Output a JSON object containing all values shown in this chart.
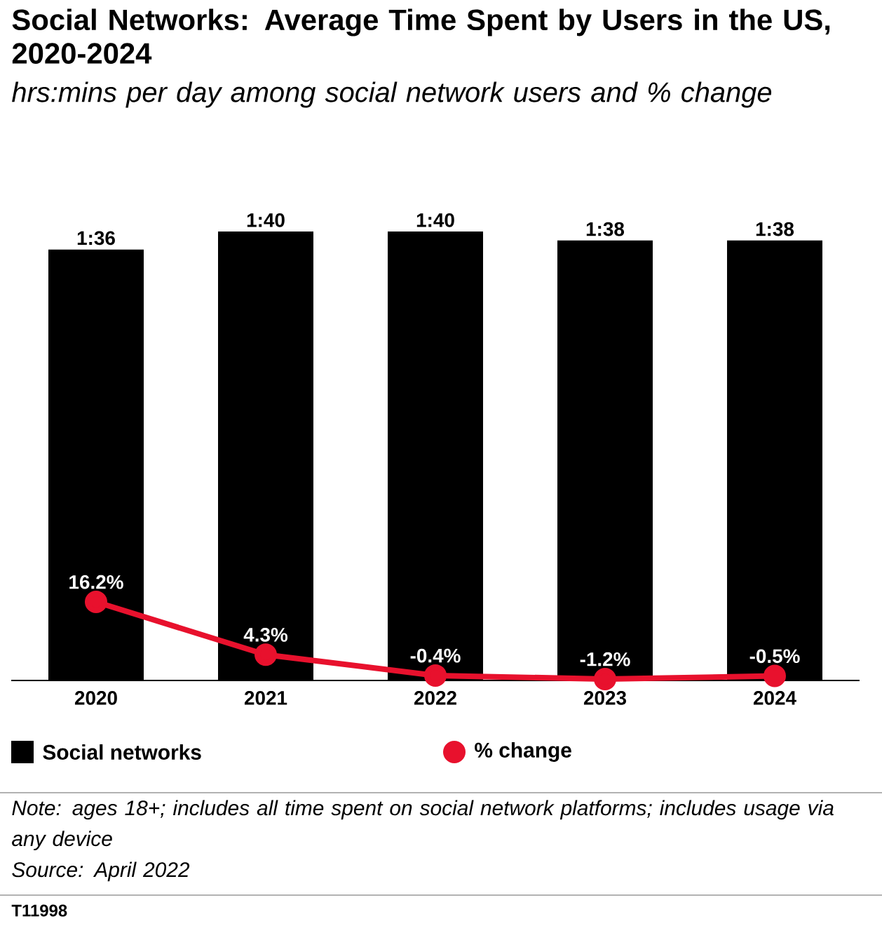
{
  "chart_data": {
    "type": "bar",
    "title": "Social Networks: Average Time Spent by Users in the US, 2020-2024",
    "subtitle": "hrs:mins per day among social network users and % change",
    "categories": [
      "2020",
      "2021",
      "2022",
      "2023",
      "2024"
    ],
    "series": [
      {
        "name": "Social networks",
        "color": "#000000",
        "values": [
          96,
          100,
          100,
          98,
          98
        ],
        "value_labels": [
          "1:36",
          "1:40",
          "1:40",
          "1:38",
          "1:38"
        ]
      },
      {
        "name": "% change",
        "type": "line",
        "axis": "y2",
        "color": "#e8112d",
        "values": [
          16.2,
          4.3,
          -0.4,
          -1.2,
          -0.5
        ],
        "value_labels": [
          "16.2%",
          "4.3%",
          "-0.4%",
          "-1.2%",
          "-0.5%"
        ]
      }
    ],
    "legend": "bottom",
    "marker": "circle",
    "tick_labels": "x",
    "annotations": [
      "Note: ages 18+; includes all time spent on social network platforms; includes usage via any device",
      "Source: April 2022",
      "T11998"
    ]
  }
}
